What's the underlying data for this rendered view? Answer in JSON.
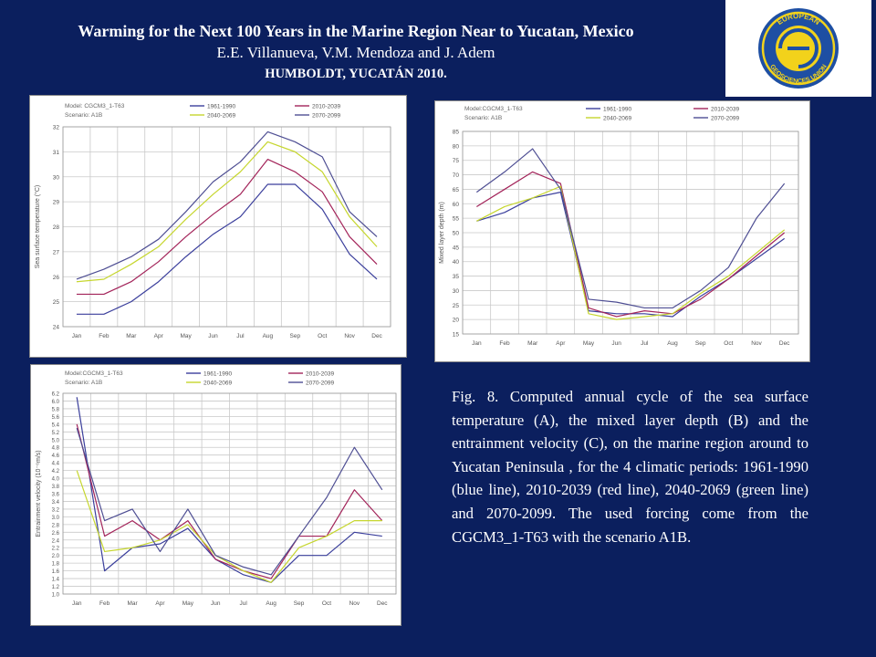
{
  "header": {
    "title": "Warming for the Next 100 Years in the Marine Region Near to Yucatan, Mexico",
    "authors": "E.E. Villanueva, V.M. Mendoza and J. Adem",
    "venue": "HUMBOLDT, YUCATÁN 2010."
  },
  "logo": {
    "text_top": "EUROPEAN",
    "text_bottom": "GEOSCIENCES UNION",
    "mark": "EG"
  },
  "caption": "Fig. 8. Computed annual cycle of the sea surface temperature (A), the mixed layer depth (B) and the entrainment velocity (C), on the marine region around to Yucatan Peninsula , for the 4 climatic periods: 1961-1990 (blue line), 2010-2039 (red line), 2040-2069 (green line) and 2070-2099. The used forcing come from the CGCM3_1-T63 with the scenario A1B.",
  "colors": {
    "background": "#0b1f5e",
    "s1961": "#3b3f9c",
    "s2010": "#a3245a",
    "s2040": "#c6d62e",
    "s2070": "#4e4e93",
    "grid": "#c9c9c9"
  },
  "chart_data": [
    {
      "type": "line",
      "model": "Model: CGCM3_1-T63",
      "scenario": "Scenario: A1B",
      "ylabel": "Sea surface temperature (°C)",
      "categories": [
        "Jan",
        "Feb",
        "Mar",
        "Apr",
        "May",
        "Jun",
        "Jul",
        "Aug",
        "Sep",
        "Oct",
        "Nov",
        "Dec"
      ],
      "ylim": [
        24,
        32
      ],
      "yticks": [
        24,
        25,
        26,
        27,
        28,
        29,
        30,
        31,
        32
      ],
      "grid": true,
      "legend": "top",
      "series": [
        {
          "name": "1961-1990",
          "color": "#3b3f9c",
          "values": [
            24.5,
            24.5,
            25.0,
            25.8,
            26.8,
            27.7,
            28.4,
            29.7,
            29.7,
            28.7,
            26.9,
            25.9
          ]
        },
        {
          "name": "2010-2039",
          "color": "#a3245a",
          "values": [
            25.3,
            25.3,
            25.8,
            26.6,
            27.6,
            28.5,
            29.3,
            30.7,
            30.2,
            29.4,
            27.6,
            26.5
          ]
        },
        {
          "name": "2040-2069",
          "color": "#c6d62e",
          "values": [
            25.8,
            25.9,
            26.5,
            27.2,
            28.3,
            29.3,
            30.2,
            31.4,
            31.0,
            30.2,
            28.4,
            27.2
          ]
        },
        {
          "name": "2070-2099",
          "color": "#4e4e93",
          "values": [
            25.9,
            26.3,
            26.8,
            27.5,
            28.6,
            29.8,
            30.6,
            31.8,
            31.4,
            30.8,
            28.6,
            27.6
          ]
        }
      ]
    },
    {
      "type": "line",
      "model": "Model:CGCM3_1-T63",
      "scenario": "Scenario: A1B",
      "ylabel": "Mixed layer depth (m)",
      "categories": [
        "Jan",
        "Feb",
        "Mar",
        "Apr",
        "May",
        "Jun",
        "Jul",
        "Aug",
        "Sep",
        "Oct",
        "Nov",
        "Dec"
      ],
      "ylim": [
        15,
        85
      ],
      "yticks": [
        15,
        20,
        25,
        30,
        35,
        40,
        45,
        50,
        55,
        60,
        65,
        70,
        75,
        80,
        85
      ],
      "grid": true,
      "legend": "top",
      "series": [
        {
          "name": "1961-1990",
          "color": "#3b3f9c",
          "values": [
            54,
            57,
            62,
            64,
            23,
            22,
            22,
            21,
            28,
            34,
            41,
            48
          ]
        },
        {
          "name": "2010-2039",
          "color": "#a3245a",
          "values": [
            59,
            65,
            71,
            67,
            24,
            21,
            23,
            22,
            27,
            34,
            42,
            50
          ]
        },
        {
          "name": "2040-2069",
          "color": "#c6d62e",
          "values": [
            54,
            59,
            62,
            66,
            22,
            20,
            21,
            22,
            29,
            35,
            43,
            51
          ]
        },
        {
          "name": "2070-2099",
          "color": "#4e4e93",
          "values": [
            64,
            71,
            79,
            65,
            27,
            26,
            24,
            24,
            30,
            38,
            55,
            67
          ]
        }
      ]
    },
    {
      "type": "line",
      "model": "Model:CGCM3_1-T63",
      "scenario": "Scenario: A1B",
      "ylabel": "Entrainment velocity (10⁻⁶m/s)",
      "categories": [
        "Jan",
        "Feb",
        "Mar",
        "Apr",
        "May",
        "Jun",
        "Jul",
        "Aug",
        "Sep",
        "Oct",
        "Nov",
        "Dec"
      ],
      "ylim": [
        1.0,
        6.2
      ],
      "yticks": [
        1.0,
        1.2,
        1.4,
        1.6,
        1.8,
        2.0,
        2.2,
        2.4,
        2.6,
        2.8,
        3.0,
        3.2,
        3.4,
        3.6,
        3.8,
        4.0,
        4.2,
        4.4,
        4.6,
        4.8,
        5.0,
        5.2,
        5.4,
        5.6,
        5.8,
        6.0,
        6.2
      ],
      "grid": true,
      "legend": "top",
      "series": [
        {
          "name": "1961-1990",
          "color": "#3b3f9c",
          "values": [
            6.1,
            1.6,
            2.2,
            2.3,
            2.7,
            1.9,
            1.5,
            1.3,
            2.0,
            2.0,
            2.6,
            2.5
          ]
        },
        {
          "name": "2010-2039",
          "color": "#a3245a",
          "values": [
            5.4,
            2.5,
            2.9,
            2.4,
            2.9,
            1.9,
            1.6,
            1.4,
            2.5,
            2.5,
            3.7,
            2.9
          ]
        },
        {
          "name": "2040-2069",
          "color": "#c6d62e",
          "values": [
            4.2,
            2.1,
            2.2,
            2.4,
            2.8,
            2.0,
            1.6,
            1.3,
            2.2,
            2.5,
            2.9,
            2.9
          ]
        },
        {
          "name": "2070-2099",
          "color": "#4e4e93",
          "values": [
            5.3,
            2.9,
            3.2,
            2.1,
            3.2,
            2.0,
            1.7,
            1.5,
            2.5,
            3.5,
            4.8,
            3.7
          ]
        }
      ]
    }
  ]
}
